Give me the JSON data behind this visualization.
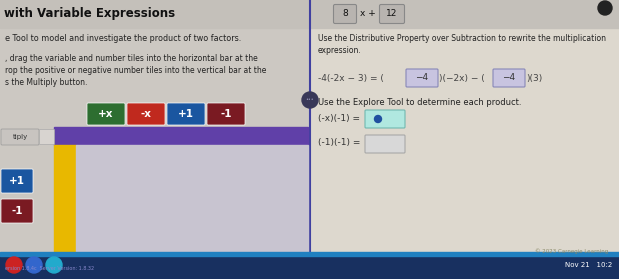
{
  "bg_left": "#ccc8c2",
  "bg_right": "#ddd8ce",
  "title": "with Variable Expressions",
  "left_text1": "e Tool to model and investigate the product of two factors.",
  "left_text2a": ", drag the variable and number tiles into the horizontal bar at the",
  "left_text2b": "rop the positive or negative number tiles into the vertical bar at the",
  "left_text2c": "s the Multiply button.",
  "right_text1a": "Use the Distributive Property over Subtraction to rewrite the multiplication",
  "right_text1b": "expression.",
  "right_text2": "Use the Explore Tool to determine each product.",
  "product1": "(-x)(-1) =",
  "product2": "(-1)(-1) =",
  "tile_colors": [
    "#2d6e30",
    "#c0291e",
    "#1a56a0",
    "#7a1a22"
  ],
  "tile_labels": [
    "+x",
    "-x",
    "+1",
    "-1"
  ],
  "purple_bar": "#6040a8",
  "yellow_bar": "#e8b800",
  "light_panel_bg": "#c8c4d0",
  "divider_color": "#4040a0",
  "box_teal_bg": "#b0e8e0",
  "box_teal_border": "#70b8b0",
  "box_empty_bg": "#d8d8d8",
  "box_empty_border": "#a8a8a8",
  "eq_box_bg": "#c8c4e0",
  "eq_box_border": "#8888b8",
  "top_box_bg": "#b8b4b0",
  "top_right_bg": "#c8c4be",
  "header_bg": "#c4c0ba",
  "taskbar_bg": "#183060",
  "copyright_text": "© 2023 Carnegie Learning",
  "footer_text": "Nov 21   10:2",
  "top_number_boxes": [
    "8",
    "x +",
    "12"
  ],
  "tiply_btn_bg": "#c8c4c0",
  "small_box_bg": "#d8d4d0",
  "dot_color": "#2050a0",
  "side_tile_colors": [
    "#1a56a0",
    "#7a1a22"
  ],
  "side_tile_labels": [
    "+1",
    "-1"
  ]
}
